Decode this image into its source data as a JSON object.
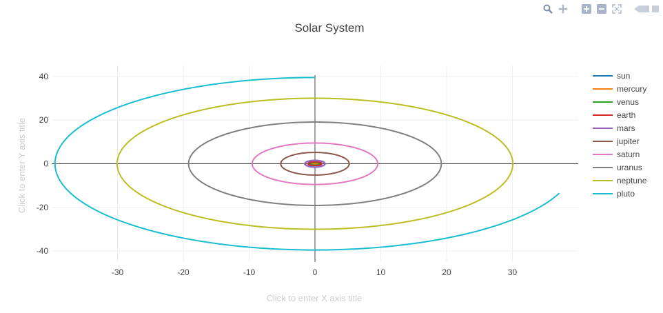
{
  "chart_data": {
    "type": "line",
    "title": "Solar System",
    "xlabel": "Click to enter X axis title",
    "ylabel": "Click to enter Y axis title",
    "xlim": [
      -40,
      40
    ],
    "ylim": [
      -45,
      45
    ],
    "xticks": [
      -30,
      -20,
      -10,
      0,
      10,
      20,
      30
    ],
    "yticks": [
      -40,
      -20,
      0,
      20,
      40
    ],
    "grid": true,
    "legend_position": "top-right",
    "series": [
      {
        "name": "sun",
        "color": "#1f77b4",
        "a": 0.0,
        "b": 0.0,
        "start_deg": 0,
        "sweep_deg": 360
      },
      {
        "name": "mercury",
        "color": "#ff7f0e",
        "a": 0.39,
        "b": 0.38,
        "start_deg": 0,
        "sweep_deg": 360
      },
      {
        "name": "venus",
        "color": "#2ca02c",
        "a": 0.72,
        "b": 0.72,
        "start_deg": 0,
        "sweep_deg": 360
      },
      {
        "name": "earth",
        "color": "#d62728",
        "a": 1.0,
        "b": 1.0,
        "start_deg": 0,
        "sweep_deg": 360
      },
      {
        "name": "mars",
        "color": "#9467bd",
        "a": 1.52,
        "b": 1.51,
        "start_deg": 0,
        "sweep_deg": 360
      },
      {
        "name": "jupiter",
        "color": "#8c564b",
        "a": 5.2,
        "b": 5.19,
        "start_deg": 0,
        "sweep_deg": 360
      },
      {
        "name": "saturn",
        "color": "#e377c2",
        "a": 9.54,
        "b": 9.5,
        "start_deg": 0,
        "sweep_deg": 360
      },
      {
        "name": "uranus",
        "color": "#7f7f7f",
        "a": 19.2,
        "b": 19.1,
        "start_deg": 0,
        "sweep_deg": 360
      },
      {
        "name": "neptune",
        "color": "#bcbd22",
        "a": 30.06,
        "b": 30.0,
        "start_deg": 0,
        "sweep_deg": 360
      },
      {
        "name": "pluto",
        "color": "#17becf",
        "a": 39.5,
        "b": 39.5,
        "start_deg": 90,
        "sweep_deg": 250
      }
    ]
  },
  "modebar": {
    "buttons": [
      "zoom-icon",
      "pan-icon",
      "zoom-in-icon",
      "zoom-out-icon",
      "autoscale-icon",
      "reset-axes-icon",
      "plotly-logo-icon"
    ]
  }
}
